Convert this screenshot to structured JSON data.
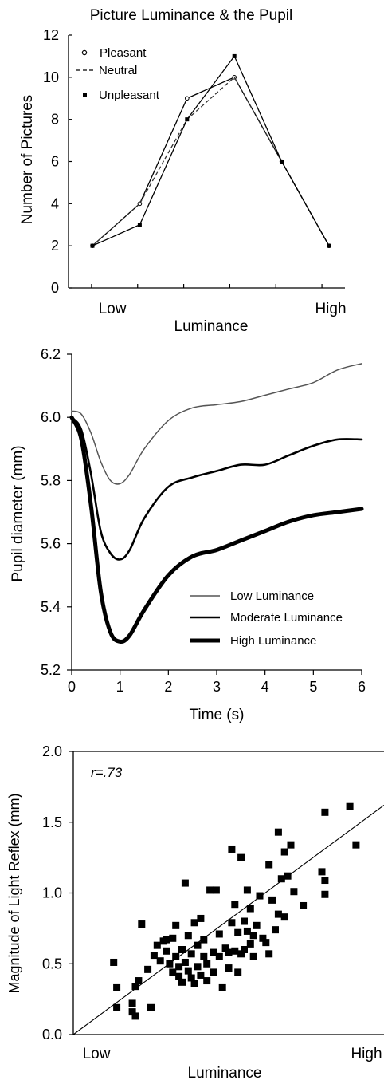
{
  "colors": {
    "ink": "#000000",
    "low_line": "#555555",
    "background": "#ffffff"
  },
  "chart_data": [
    {
      "type": "line",
      "title": "Picture Luminance & the Pupil",
      "xlabel": "Luminance",
      "ylabel": "Number of Pictures",
      "x_tick_labels": [
        "Low",
        "High"
      ],
      "y_ticks": [
        "0",
        "2",
        "4",
        "6",
        "8",
        "10",
        "12"
      ],
      "ylim": [
        0,
        12
      ],
      "x": [
        1,
        2,
        3,
        4,
        5,
        6
      ],
      "legend": "top-left",
      "series": [
        {
          "name": "Pleasant",
          "values": [
            2,
            4,
            9,
            10,
            6,
            2
          ],
          "style": "solid",
          "marker": "open-circle"
        },
        {
          "name": "Neutral",
          "values": [
            2,
            4,
            8,
            10,
            6,
            2
          ],
          "style": "dashed",
          "marker": "none"
        },
        {
          "name": "Unpleasant",
          "values": [
            2,
            3,
            8,
            11,
            6,
            2
          ],
          "style": "solid",
          "marker": "filled-square"
        }
      ]
    },
    {
      "type": "line",
      "title": "",
      "xlabel": "Time (s)",
      "ylabel": "Pupil diameter (mm)",
      "x_ticks": [
        "0",
        "1",
        "2",
        "3",
        "4",
        "5",
        "6"
      ],
      "y_ticks": [
        "5.2",
        "5.4",
        "5.6",
        "5.8",
        "6.0",
        "6.2"
      ],
      "xlim": [
        0,
        6
      ],
      "ylim": [
        5.2,
        6.2
      ],
      "legend": "bottom-right",
      "x": [
        0,
        0.2,
        0.4,
        0.6,
        0.8,
        1.0,
        1.2,
        1.5,
        2.0,
        2.5,
        3.0,
        3.5,
        4.0,
        4.5,
        5.0,
        5.5,
        6.0
      ],
      "series": [
        {
          "name": "Low Luminance",
          "weight": "thin",
          "values": [
            6.02,
            6.01,
            5.95,
            5.86,
            5.8,
            5.79,
            5.82,
            5.9,
            5.99,
            6.03,
            6.04,
            6.05,
            6.07,
            6.09,
            6.11,
            6.15,
            6.17
          ]
        },
        {
          "name": "Moderate Luminance",
          "weight": "medium",
          "values": [
            6.0,
            5.96,
            5.82,
            5.64,
            5.57,
            5.55,
            5.58,
            5.68,
            5.78,
            5.81,
            5.83,
            5.85,
            5.85,
            5.88,
            5.91,
            5.93,
            5.93
          ]
        },
        {
          "name": "High Luminance",
          "weight": "thick",
          "values": [
            6.0,
            5.93,
            5.72,
            5.45,
            5.32,
            5.29,
            5.31,
            5.39,
            5.5,
            5.56,
            5.58,
            5.61,
            5.64,
            5.67,
            5.69,
            5.7,
            5.71
          ]
        }
      ]
    },
    {
      "type": "scatter",
      "title": "",
      "xlabel": "Luminance",
      "ylabel": "Magnitude of Light Reflex (mm)",
      "x_tick_labels": [
        "Low",
        "High"
      ],
      "y_ticks": [
        "0.0",
        "0.5",
        "1.0",
        "1.5",
        "2.0"
      ],
      "xlim": [
        0,
        1
      ],
      "ylim": [
        0,
        2
      ],
      "annotation": "r=.73",
      "fit_line": {
        "x": [
          0,
          1
        ],
        "y": [
          0,
          1.62
        ]
      },
      "points": [
        [
          0.13,
          0.51
        ],
        [
          0.14,
          0.33
        ],
        [
          0.14,
          0.19
        ],
        [
          0.19,
          0.22
        ],
        [
          0.19,
          0.16
        ],
        [
          0.2,
          0.13
        ],
        [
          0.2,
          0.34
        ],
        [
          0.21,
          0.38
        ],
        [
          0.22,
          0.78
        ],
        [
          0.24,
          0.46
        ],
        [
          0.25,
          0.19
        ],
        [
          0.26,
          0.56
        ],
        [
          0.27,
          0.63
        ],
        [
          0.28,
          0.52
        ],
        [
          0.29,
          0.66
        ],
        [
          0.3,
          0.59
        ],
        [
          0.3,
          0.67
        ],
        [
          0.31,
          0.5
        ],
        [
          0.32,
          0.68
        ],
        [
          0.32,
          0.44
        ],
        [
          0.33,
          0.77
        ],
        [
          0.33,
          0.55
        ],
        [
          0.34,
          0.48
        ],
        [
          0.34,
          0.41
        ],
        [
          0.35,
          0.6
        ],
        [
          0.35,
          0.37
        ],
        [
          0.36,
          0.51
        ],
        [
          0.36,
          1.07
        ],
        [
          0.37,
          0.7
        ],
        [
          0.37,
          0.45
        ],
        [
          0.38,
          0.57
        ],
        [
          0.38,
          0.4
        ],
        [
          0.39,
          0.79
        ],
        [
          0.39,
          0.36
        ],
        [
          0.4,
          0.63
        ],
        [
          0.4,
          0.48
        ],
        [
          0.41,
          0.82
        ],
        [
          0.41,
          0.42
        ],
        [
          0.42,
          0.55
        ],
        [
          0.42,
          0.67
        ],
        [
          0.43,
          0.5
        ],
        [
          0.43,
          0.38
        ],
        [
          0.44,
          1.02
        ],
        [
          0.45,
          0.58
        ],
        [
          0.45,
          0.44
        ],
        [
          0.46,
          1.02
        ],
        [
          0.47,
          0.71
        ],
        [
          0.47,
          0.55
        ],
        [
          0.48,
          0.33
        ],
        [
          0.49,
          0.61
        ],
        [
          0.5,
          0.58
        ],
        [
          0.5,
          0.47
        ],
        [
          0.51,
          0.79
        ],
        [
          0.51,
          1.31
        ],
        [
          0.52,
          0.92
        ],
        [
          0.52,
          0.59
        ],
        [
          0.53,
          0.44
        ],
        [
          0.53,
          0.72
        ],
        [
          0.54,
          1.25
        ],
        [
          0.54,
          0.57
        ],
        [
          0.55,
          0.8
        ],
        [
          0.55,
          0.6
        ],
        [
          0.56,
          0.73
        ],
        [
          0.56,
          1.02
        ],
        [
          0.57,
          0.89
        ],
        [
          0.57,
          0.64
        ],
        [
          0.58,
          0.7
        ],
        [
          0.58,
          0.55
        ],
        [
          0.59,
          0.77
        ],
        [
          0.6,
          0.98
        ],
        [
          0.61,
          0.68
        ],
        [
          0.62,
          0.65
        ],
        [
          0.63,
          1.2
        ],
        [
          0.63,
          0.57
        ],
        [
          0.64,
          0.95
        ],
        [
          0.65,
          0.74
        ],
        [
          0.66,
          1.43
        ],
        [
          0.66,
          0.85
        ],
        [
          0.67,
          1.1
        ],
        [
          0.68,
          1.29
        ],
        [
          0.68,
          0.83
        ],
        [
          0.69,
          1.12
        ],
        [
          0.7,
          1.34
        ],
        [
          0.71,
          1.01
        ],
        [
          0.74,
          0.91
        ],
        [
          0.8,
          1.15
        ],
        [
          0.81,
          1.09
        ],
        [
          0.81,
          0.99
        ],
        [
          0.81,
          1.57
        ],
        [
          0.89,
          1.61
        ],
        [
          0.91,
          1.34
        ]
      ]
    }
  ]
}
